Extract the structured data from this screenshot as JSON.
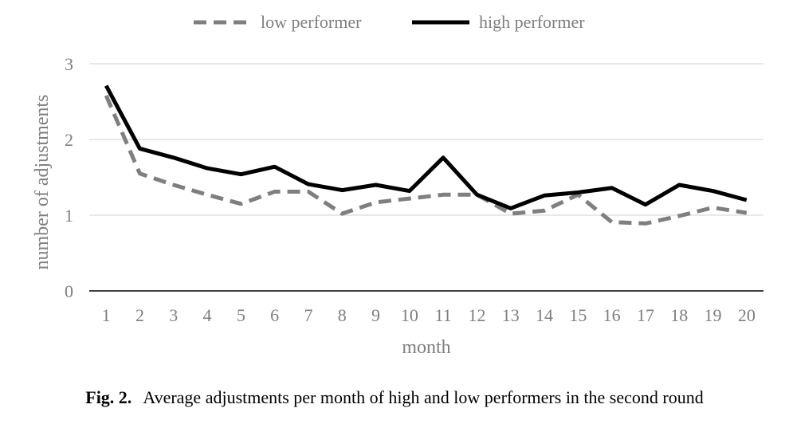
{
  "chart_data": {
    "type": "line",
    "x": [
      1,
      2,
      3,
      4,
      5,
      6,
      7,
      8,
      9,
      10,
      11,
      12,
      13,
      14,
      15,
      16,
      17,
      18,
      19,
      20
    ],
    "series": [
      {
        "name": "low performer",
        "style": "dashed",
        "color": "#7f7f7f",
        "values": [
          2.58,
          1.55,
          1.4,
          1.27,
          1.15,
          1.31,
          1.31,
          1.02,
          1.17,
          1.22,
          1.27,
          1.27,
          1.02,
          1.06,
          1.27,
          0.91,
          0.89,
          0.99,
          1.1,
          1.03
        ]
      },
      {
        "name": "high performer",
        "style": "solid",
        "color": "#000000",
        "values": [
          2.71,
          1.88,
          1.76,
          1.62,
          1.54,
          1.64,
          1.41,
          1.33,
          1.4,
          1.32,
          1.76,
          1.27,
          1.09,
          1.26,
          1.3,
          1.36,
          1.14,
          1.4,
          1.32,
          1.2
        ]
      }
    ],
    "xlabel": "month",
    "ylabel": "number of adjustments",
    "ylim": [
      0,
      3
    ],
    "yticks": [
      0,
      1,
      2,
      3
    ],
    "grid": true,
    "legend": "top-center"
  },
  "caption": {
    "label": "Fig. 2.",
    "text": "Average adjustments per month of high and low performers in the second round"
  }
}
